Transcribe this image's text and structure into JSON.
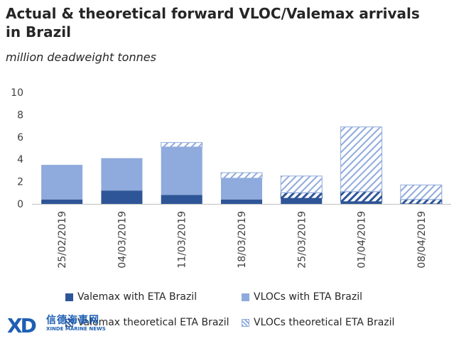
{
  "chart_data": {
    "type": "bar",
    "stacked": true,
    "title": "Actual & theoretical forward VLOC/Valemax arrivals in Brazil",
    "subtitle": "million deadweight tonnes",
    "categories": [
      "25/02/2019",
      "04/03/2019",
      "11/03/2019",
      "18/03/2019",
      "25/03/2019",
      "01/04/2019",
      "08/04/2019"
    ],
    "series": [
      {
        "name": "Valemax with ETA Brazil",
        "values": [
          0.4,
          1.2,
          0.8,
          0.4,
          0.5,
          0.2,
          0.0
        ],
        "color": "#2e5597",
        "pattern": "solid"
      },
      {
        "name": "VLOCs with ETA Brazil",
        "values": [
          3.1,
          2.9,
          4.3,
          1.9,
          0.0,
          0.0,
          0.0
        ],
        "color": "#8faadc",
        "pattern": "solid"
      },
      {
        "name": "Valemax theoretical ETA Brazil",
        "values": [
          0.0,
          0.0,
          0.0,
          0.0,
          0.5,
          0.9,
          0.4
        ],
        "color": "#2e5597",
        "pattern": "hatch"
      },
      {
        "name": "VLOCs theoretical ETA Brazil",
        "values": [
          0.0,
          0.0,
          0.4,
          0.5,
          1.5,
          5.8,
          1.3
        ],
        "color": "#8faadc",
        "pattern": "hatch"
      }
    ],
    "yticks": [
      0,
      2,
      4,
      6,
      8,
      10
    ],
    "ylim": [
      0,
      10
    ],
    "legend_position": "bottom",
    "grid": false
  },
  "watermark": {
    "logo": "XD",
    "chinese": "信德海事网",
    "english": "XINDE MARINE NEWS"
  }
}
